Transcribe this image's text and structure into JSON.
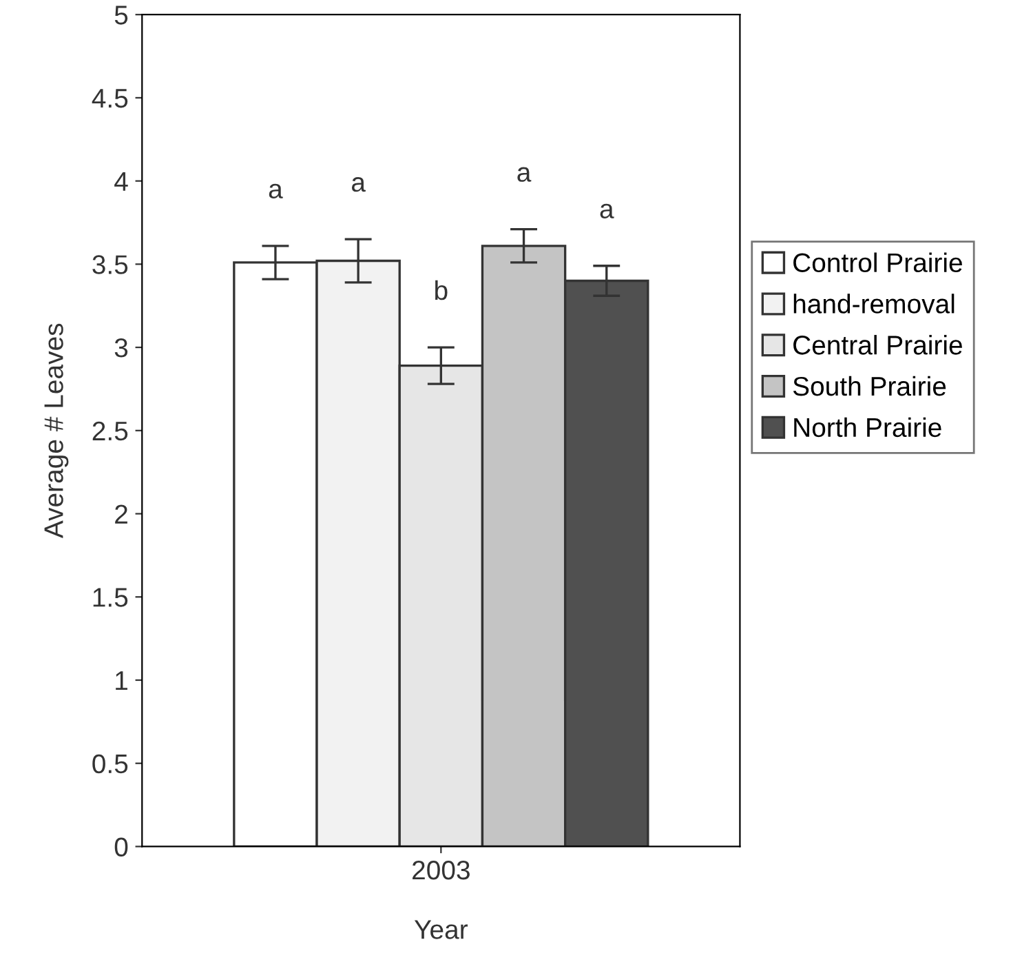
{
  "chart_data": {
    "type": "bar",
    "xlabel": "Year",
    "ylabel": "Average # Leaves",
    "categories": [
      "2003"
    ],
    "series": [
      {
        "name": "Control Prairie",
        "color": "#ffffff",
        "values": [
          3.51
        ],
        "errors": [
          0.1
        ]
      },
      {
        "name": "hand-removal",
        "color": "#f2f2f2",
        "values": [
          3.52
        ],
        "errors": [
          0.13
        ]
      },
      {
        "name": "Central Prairie",
        "color": "#e6e6e6",
        "values": [
          2.89
        ],
        "errors": [
          0.11
        ]
      },
      {
        "name": "South Prairie",
        "color": "#c4c4c4",
        "values": [
          3.61
        ],
        "errors": [
          0.1
        ]
      },
      {
        "name": "North Prairie",
        "color": "#505050",
        "values": [
          3.4
        ],
        "errors": [
          0.09
        ]
      }
    ],
    "annotations": [
      "a",
      "a",
      "b",
      "a",
      "a"
    ],
    "ylim": [
      0,
      5
    ],
    "yticks": [
      0,
      0.5,
      1,
      1.5,
      2,
      2.5,
      3,
      3.5,
      4,
      4.5,
      5
    ],
    "grid": false,
    "legend": "right"
  }
}
